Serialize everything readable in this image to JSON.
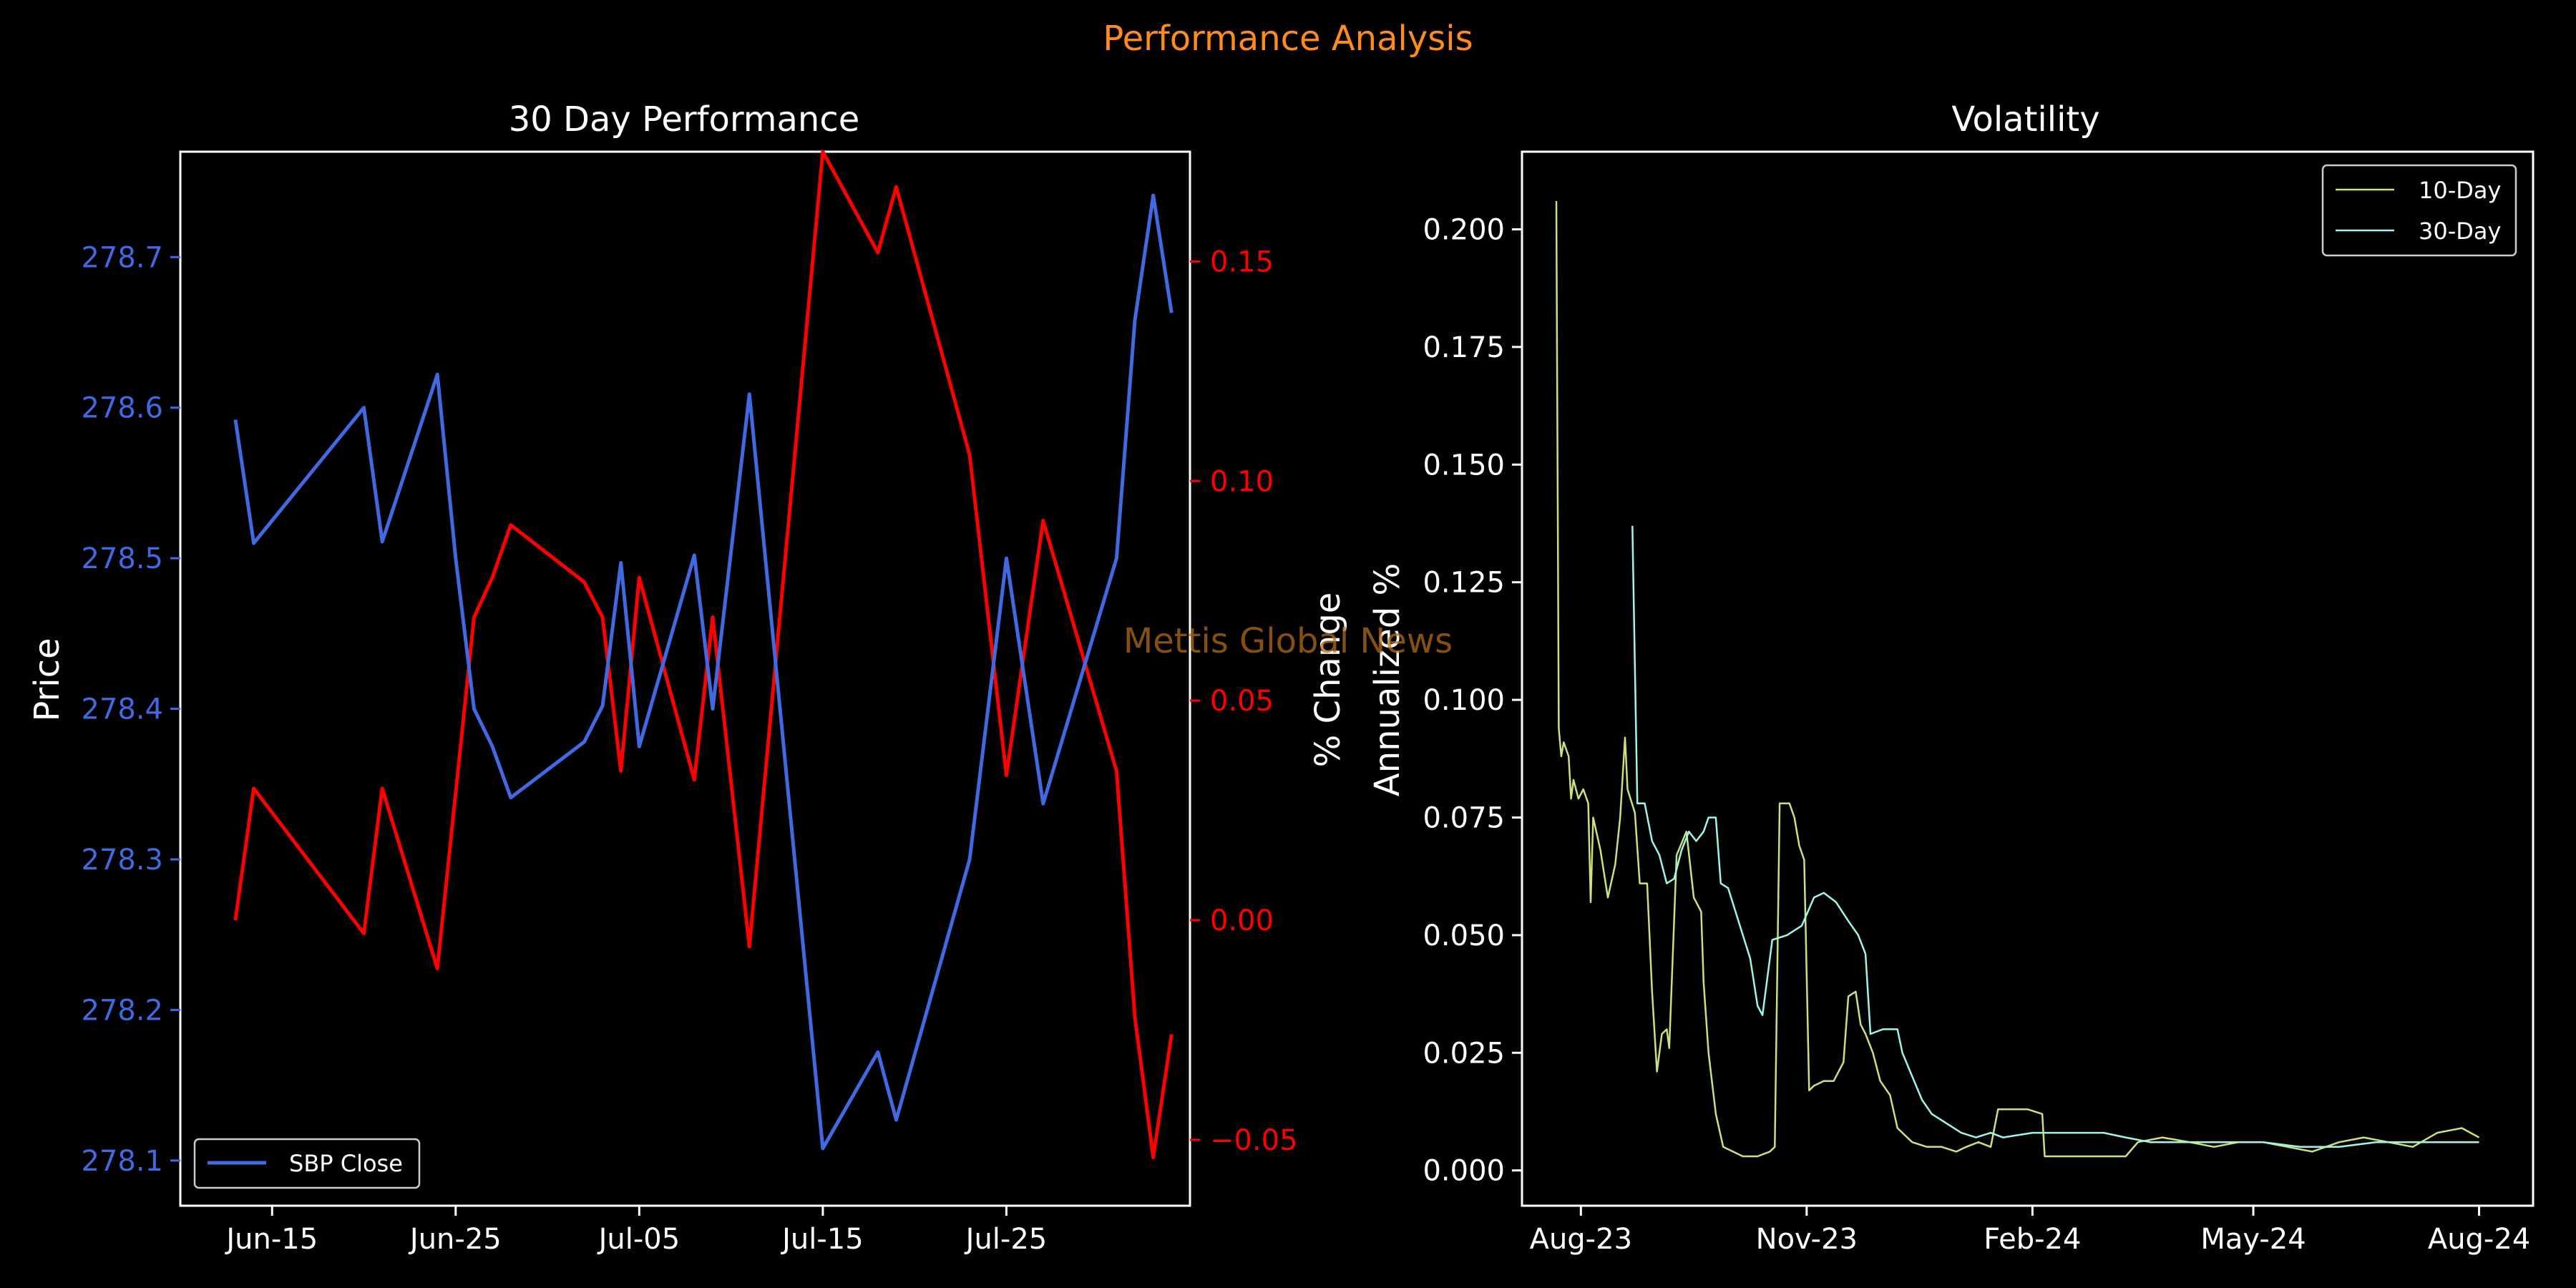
{
  "figure": {
    "suptitle": "Performance Analysis",
    "watermark": "Mettis Global News"
  },
  "colors": {
    "background": "#000000",
    "price": "#4169e1",
    "change": "#ff0000",
    "vol10": "#c9e27a",
    "vol30": "#9ff5ea",
    "title": "#ff8c1a",
    "axes": "#ffffff"
  },
  "chart_data": [
    {
      "type": "line",
      "title": "30 Day Performance",
      "xlabel": "",
      "ylabel": "Price",
      "ylabel_right": "% Change",
      "x_ticks": [
        "Jun-15",
        "Jun-25",
        "Jul-05",
        "Jul-15",
        "Jul-25"
      ],
      "x_tick_dates": [
        "2024-06-15",
        "2024-06-25",
        "2024-07-05",
        "2024-07-15",
        "2024-07-25"
      ],
      "xlim": [
        "2024-06-10",
        "2024-08-04"
      ],
      "ylim": [
        278.07,
        278.77
      ],
      "y_ticks": [
        "278.1",
        "278.2",
        "278.3",
        "278.4",
        "278.5",
        "278.6",
        "278.7"
      ],
      "y2lim": [
        -0.065,
        0.175
      ],
      "y2_ticks": [
        "−0.05",
        "0.00",
        "0.05",
        "0.10",
        "0.15"
      ],
      "legend": {
        "position": "lower-left",
        "entries": [
          "SBP Close"
        ]
      },
      "series": [
        {
          "name": "SBP Close",
          "axis": "left",
          "points": [
            [
              "2024-06-13",
              278.592
            ],
            [
              "2024-06-14",
              278.51
            ],
            [
              "2024-06-20",
              278.6
            ],
            [
              "2024-06-21",
              278.511
            ],
            [
              "2024-06-24",
              278.622
            ],
            [
              "2024-06-25",
              278.5
            ],
            [
              "2024-06-26",
              278.4
            ],
            [
              "2024-06-27",
              278.375
            ],
            [
              "2024-06-28",
              278.341
            ],
            [
              "2024-07-02",
              278.378
            ],
            [
              "2024-07-03",
              278.402
            ],
            [
              "2024-07-04",
              278.497
            ],
            [
              "2024-07-05",
              278.375
            ],
            [
              "2024-07-08",
              278.502
            ],
            [
              "2024-07-09",
              278.4
            ],
            [
              "2024-07-11",
              278.609
            ],
            [
              "2024-07-15",
              278.108
            ],
            [
              "2024-07-18",
              278.172
            ],
            [
              "2024-07-19",
              278.127
            ],
            [
              "2024-07-23",
              278.3
            ],
            [
              "2024-07-25",
              278.5
            ],
            [
              "2024-07-27",
              278.337
            ],
            [
              "2024-07-31",
              278.5
            ],
            [
              "2024-08-01",
              278.658
            ],
            [
              "2024-08-02",
              278.741
            ],
            [
              "2024-08-03",
              278.663
            ]
          ]
        },
        {
          "name": "",
          "axis": "right",
          "points": [
            [
              "2024-06-13",
              0.0
            ],
            [
              "2024-06-14",
              0.03
            ],
            [
              "2024-06-20",
              -0.003
            ],
            [
              "2024-06-21",
              0.03
            ],
            [
              "2024-06-24",
              -0.011
            ],
            [
              "2024-06-26",
              0.069
            ],
            [
              "2024-06-27",
              0.078
            ],
            [
              "2024-06-28",
              0.09
            ],
            [
              "2024-07-02",
              0.077
            ],
            [
              "2024-07-03",
              0.069
            ],
            [
              "2024-07-04",
              0.034
            ],
            [
              "2024-07-05",
              0.078
            ],
            [
              "2024-07-08",
              0.032
            ],
            [
              "2024-07-09",
              0.069
            ],
            [
              "2024-07-11",
              -0.006
            ],
            [
              "2024-07-15",
              0.175
            ],
            [
              "2024-07-18",
              0.152
            ],
            [
              "2024-07-19",
              0.167
            ],
            [
              "2024-07-23",
              0.106
            ],
            [
              "2024-07-25",
              0.033
            ],
            [
              "2024-07-27",
              0.091
            ],
            [
              "2024-07-31",
              0.034
            ],
            [
              "2024-08-01",
              -0.022
            ],
            [
              "2024-08-02",
              -0.054
            ],
            [
              "2024-08-03",
              -0.026
            ]
          ]
        }
      ]
    },
    {
      "type": "line",
      "title": "Volatility",
      "xlabel": "",
      "ylabel": "Annualized %",
      "x_ticks": [
        "Aug-23",
        "Nov-23",
        "Feb-24",
        "May-24",
        "Aug-24"
      ],
      "x_tick_dates": [
        "2023-08-01",
        "2023-11-01",
        "2024-02-01",
        "2024-05-01",
        "2024-08-01"
      ],
      "xlim": [
        "2023-07-08",
        "2024-08-23"
      ],
      "ylim": [
        -0.0075,
        0.2165
      ],
      "y_ticks": [
        "0.000",
        "0.025",
        "0.050",
        "0.075",
        "0.100",
        "0.125",
        "0.150",
        "0.175",
        "0.200"
      ],
      "grid": false,
      "legend": {
        "position": "top-right",
        "entries": [
          "10-Day",
          "30-Day"
        ]
      },
      "series": [
        {
          "name": "10-Day",
          "points": [
            [
              "2023-07-22",
              0.206
            ],
            [
              "2023-07-23",
              0.094
            ],
            [
              "2023-07-24",
              0.088
            ],
            [
              "2023-07-25",
              0.091
            ],
            [
              "2023-07-27",
              0.088
            ],
            [
              "2023-07-28",
              0.079
            ],
            [
              "2023-07-29",
              0.083
            ],
            [
              "2023-07-31",
              0.079
            ],
            [
              "2023-08-02",
              0.081
            ],
            [
              "2023-08-04",
              0.078
            ],
            [
              "2023-08-05",
              0.057
            ],
            [
              "2023-08-06",
              0.075
            ],
            [
              "2023-08-09",
              0.068
            ],
            [
              "2023-08-12",
              0.058
            ],
            [
              "2023-08-15",
              0.065
            ],
            [
              "2023-08-17",
              0.075
            ],
            [
              "2023-08-19",
              0.092
            ],
            [
              "2023-08-20",
              0.081
            ],
            [
              "2023-08-23",
              0.076
            ],
            [
              "2023-08-25",
              0.061
            ],
            [
              "2023-08-28",
              0.061
            ],
            [
              "2023-08-30",
              0.038
            ],
            [
              "2023-09-01",
              0.021
            ],
            [
              "2023-09-03",
              0.029
            ],
            [
              "2023-09-05",
              0.03
            ],
            [
              "2023-09-06",
              0.026
            ],
            [
              "2023-09-09",
              0.067
            ],
            [
              "2023-09-13",
              0.072
            ],
            [
              "2023-09-16",
              0.058
            ],
            [
              "2023-09-19",
              0.055
            ],
            [
              "2023-09-20",
              0.04
            ],
            [
              "2023-09-22",
              0.025
            ],
            [
              "2023-09-25",
              0.012
            ],
            [
              "2023-09-28",
              0.005
            ],
            [
              "2023-10-02",
              0.004
            ],
            [
              "2023-10-06",
              0.003
            ],
            [
              "2023-10-12",
              0.003
            ],
            [
              "2023-10-17",
              0.004
            ],
            [
              "2023-10-19",
              0.005
            ],
            [
              "2023-10-21",
              0.078
            ],
            [
              "2023-10-25",
              0.078
            ],
            [
              "2023-10-27",
              0.075
            ],
            [
              "2023-10-29",
              0.069
            ],
            [
              "2023-10-31",
              0.066
            ],
            [
              "2023-11-02",
              0.017
            ],
            [
              "2023-11-04",
              0.018
            ],
            [
              "2023-11-08",
              0.019
            ],
            [
              "2023-11-12",
              0.019
            ],
            [
              "2023-11-16",
              0.023
            ],
            [
              "2023-11-18",
              0.037
            ],
            [
              "2023-11-21",
              0.038
            ],
            [
              "2023-11-23",
              0.031
            ],
            [
              "2023-11-25",
              0.029
            ],
            [
              "2023-11-28",
              0.025
            ],
            [
              "2023-12-01",
              0.019
            ],
            [
              "2023-12-05",
              0.016
            ],
            [
              "2023-12-08",
              0.009
            ],
            [
              "2023-12-14",
              0.006
            ],
            [
              "2023-12-20",
              0.005
            ],
            [
              "2023-12-26",
              0.005
            ],
            [
              "2024-01-01",
              0.004
            ],
            [
              "2024-01-05",
              0.005
            ],
            [
              "2024-01-10",
              0.006
            ],
            [
              "2024-01-15",
              0.005
            ],
            [
              "2024-01-18",
              0.013
            ],
            [
              "2024-01-30",
              0.013
            ],
            [
              "2024-02-05",
              0.012
            ],
            [
              "2024-02-06",
              0.003
            ],
            [
              "2024-02-20",
              0.003
            ],
            [
              "2024-03-01",
              0.003
            ],
            [
              "2024-03-10",
              0.003
            ],
            [
              "2024-03-15",
              0.006
            ],
            [
              "2024-03-25",
              0.007
            ],
            [
              "2024-04-05",
              0.006
            ],
            [
              "2024-04-15",
              0.005
            ],
            [
              "2024-04-25",
              0.006
            ],
            [
              "2024-05-05",
              0.006
            ],
            [
              "2024-05-15",
              0.005
            ],
            [
              "2024-05-25",
              0.004
            ],
            [
              "2024-06-05",
              0.006
            ],
            [
              "2024-06-15",
              0.007
            ],
            [
              "2024-06-25",
              0.006
            ],
            [
              "2024-07-05",
              0.005
            ],
            [
              "2024-07-15",
              0.008
            ],
            [
              "2024-07-25",
              0.009
            ],
            [
              "2024-08-01",
              0.007
            ]
          ]
        },
        {
          "name": "30-Day",
          "points": [
            [
              "2023-08-22",
              0.137
            ],
            [
              "2023-08-24",
              0.078
            ],
            [
              "2023-08-27",
              0.078
            ],
            [
              "2023-08-30",
              0.07
            ],
            [
              "2023-09-02",
              0.067
            ],
            [
              "2023-09-05",
              0.061
            ],
            [
              "2023-09-08",
              0.062
            ],
            [
              "2023-09-11",
              0.068
            ],
            [
              "2023-09-14",
              0.072
            ],
            [
              "2023-09-17",
              0.07
            ],
            [
              "2023-09-20",
              0.072
            ],
            [
              "2023-09-22",
              0.075
            ],
            [
              "2023-09-25",
              0.075
            ],
            [
              "2023-09-27",
              0.061
            ],
            [
              "2023-09-30",
              0.06
            ],
            [
              "2023-10-03",
              0.055
            ],
            [
              "2023-10-06",
              0.05
            ],
            [
              "2023-10-09",
              0.045
            ],
            [
              "2023-10-12",
              0.035
            ],
            [
              "2023-10-14",
              0.033
            ],
            [
              "2023-10-18",
              0.049
            ],
            [
              "2023-10-24",
              0.05
            ],
            [
              "2023-10-30",
              0.052
            ],
            [
              "2023-11-04",
              0.058
            ],
            [
              "2023-11-08",
              0.059
            ],
            [
              "2023-11-13",
              0.057
            ],
            [
              "2023-11-18",
              0.053
            ],
            [
              "2023-11-22",
              0.05
            ],
            [
              "2023-11-25",
              0.046
            ],
            [
              "2023-11-27",
              0.029
            ],
            [
              "2023-12-02",
              0.03
            ],
            [
              "2023-12-08",
              0.03
            ],
            [
              "2023-12-10",
              0.025
            ],
            [
              "2023-12-14",
              0.02
            ],
            [
              "2023-12-18",
              0.015
            ],
            [
              "2023-12-22",
              0.012
            ],
            [
              "2023-12-28",
              0.01
            ],
            [
              "2024-01-03",
              0.008
            ],
            [
              "2024-01-09",
              0.007
            ],
            [
              "2024-01-15",
              0.008
            ],
            [
              "2024-01-20",
              0.007
            ],
            [
              "2024-02-01",
              0.008
            ],
            [
              "2024-02-15",
              0.008
            ],
            [
              "2024-03-01",
              0.008
            ],
            [
              "2024-03-10",
              0.007
            ],
            [
              "2024-03-20",
              0.006
            ],
            [
              "2024-04-05",
              0.006
            ],
            [
              "2024-04-20",
              0.006
            ],
            [
              "2024-05-05",
              0.006
            ],
            [
              "2024-05-20",
              0.005
            ],
            [
              "2024-06-05",
              0.005
            ],
            [
              "2024-06-20",
              0.006
            ],
            [
              "2024-07-05",
              0.006
            ],
            [
              "2024-07-20",
              0.006
            ],
            [
              "2024-08-01",
              0.006
            ]
          ]
        }
      ]
    }
  ]
}
